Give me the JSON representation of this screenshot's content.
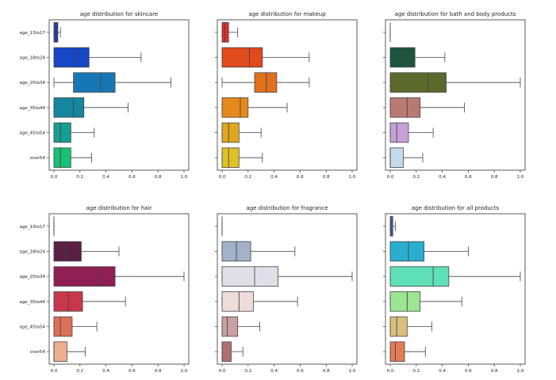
{
  "chart_data": {
    "type": "box",
    "categories": [
      "age_13to17",
      "age_18to24",
      "age_25to34",
      "age_35to44",
      "age_45to54",
      "over54"
    ],
    "xlim": [
      0,
      1.0
    ],
    "xticks": [
      "0.0",
      "0.2",
      "0.4",
      "0.6",
      "0.8",
      "1.0"
    ],
    "panels": [
      {
        "title": "age distribution for skincare",
        "colors": [
          "#2539b5",
          "#1547c6",
          "#1777b5",
          "#1486a0",
          "#169f93",
          "#17c275"
        ],
        "boxes": [
          {
            "min": 0.0,
            "q1": 0.0,
            "median": 0.01,
            "q3": 0.03,
            "max": 0.05
          },
          {
            "min": 0.0,
            "q1": 0.0,
            "median": 0.16,
            "q3": 0.27,
            "max": 0.67
          },
          {
            "min": 0.0,
            "q1": 0.15,
            "median": 0.36,
            "q3": 0.47,
            "max": 0.9
          },
          {
            "min": 0.0,
            "q1": 0.0,
            "median": 0.15,
            "q3": 0.23,
            "max": 0.57
          },
          {
            "min": 0.0,
            "q1": 0.0,
            "median": 0.05,
            "q3": 0.13,
            "max": 0.31
          },
          {
            "min": 0.0,
            "q1": 0.0,
            "median": 0.05,
            "q3": 0.13,
            "max": 0.29
          }
        ]
      },
      {
        "title": "age distribution for makeup",
        "colors": [
          "#e22e2a",
          "#e04a1d",
          "#e2701c",
          "#e48a1c",
          "#e0a61e",
          "#e0c125"
        ],
        "boxes": [
          {
            "min": 0.0,
            "q1": 0.0,
            "median": 0.02,
            "q3": 0.05,
            "max": 0.12
          },
          {
            "min": 0.0,
            "q1": 0.0,
            "median": 0.21,
            "q3": 0.31,
            "max": 0.67
          },
          {
            "min": 0.0,
            "q1": 0.25,
            "median": 0.34,
            "q3": 0.42,
            "max": 0.67
          },
          {
            "min": 0.0,
            "q1": 0.0,
            "median": 0.14,
            "q3": 0.2,
            "max": 0.5
          },
          {
            "min": 0.0,
            "q1": 0.0,
            "median": 0.05,
            "q3": 0.13,
            "max": 0.3
          },
          {
            "min": 0.0,
            "q1": 0.0,
            "median": 0.05,
            "q3": 0.13,
            "max": 0.31
          }
        ]
      },
      {
        "title": "age distribution for bath and body products",
        "colors": [
          "#2a6b48",
          "#1d553f",
          "#5b6a2c",
          "#b87a72",
          "#c7a0d8",
          "#c4dbeb"
        ],
        "boxes": [
          {
            "min": 0.0,
            "q1": 0.0,
            "median": 0.0,
            "q3": 0.0,
            "max": 0.0
          },
          {
            "min": 0.0,
            "q1": 0.0,
            "median": 0.12,
            "q3": 0.19,
            "max": 0.42
          },
          {
            "min": 0.0,
            "q1": 0.0,
            "median": 0.29,
            "q3": 0.43,
            "max": 1.0
          },
          {
            "min": 0.0,
            "q1": 0.0,
            "median": 0.13,
            "q3": 0.23,
            "max": 0.57
          },
          {
            "min": 0.0,
            "q1": 0.0,
            "median": 0.05,
            "q3": 0.14,
            "max": 0.33
          },
          {
            "min": 0.0,
            "q1": 0.0,
            "median": 0.0,
            "q3": 0.1,
            "max": 0.25
          }
        ]
      },
      {
        "title": "age distribution for hair",
        "colors": [
          "#3a1a3d",
          "#5a1f45",
          "#8f1f55",
          "#c9374a",
          "#dd7157",
          "#eeaf8e"
        ],
        "boxes": [
          {
            "min": 0.0,
            "q1": 0.0,
            "median": 0.0,
            "q3": 0.0,
            "max": 0.0
          },
          {
            "min": 0.0,
            "q1": 0.0,
            "median": 0.09,
            "q3": 0.21,
            "max": 0.5
          },
          {
            "min": 0.0,
            "q1": 0.0,
            "median": 0.34,
            "q3": 0.47,
            "max": 1.0
          },
          {
            "min": 0.0,
            "q1": 0.0,
            "median": 0.11,
            "q3": 0.22,
            "max": 0.55
          },
          {
            "min": 0.0,
            "q1": 0.0,
            "median": 0.05,
            "q3": 0.14,
            "max": 0.33
          },
          {
            "min": 0.0,
            "q1": 0.0,
            "median": 0.0,
            "q3": 0.1,
            "max": 0.24
          }
        ]
      },
      {
        "title": "age distribution for fragrance",
        "colors": [
          "#b8c8dc",
          "#a3b2c8",
          "#e0dfe7",
          "#efdcda",
          "#cca0a2",
          "#b0706f"
        ],
        "boxes": [
          {
            "min": 0.0,
            "q1": 0.0,
            "median": 0.0,
            "q3": 0.0,
            "max": 0.0
          },
          {
            "min": 0.0,
            "q1": 0.0,
            "median": 0.11,
            "q3": 0.22,
            "max": 0.56
          },
          {
            "min": 0.0,
            "q1": 0.0,
            "median": 0.25,
            "q3": 0.43,
            "max": 1.0
          },
          {
            "min": 0.0,
            "q1": 0.0,
            "median": 0.13,
            "q3": 0.24,
            "max": 0.58
          },
          {
            "min": 0.0,
            "q1": 0.0,
            "median": 0.04,
            "q3": 0.12,
            "max": 0.29
          },
          {
            "min": 0.0,
            "q1": 0.0,
            "median": 0.0,
            "q3": 0.07,
            "max": 0.16
          }
        ]
      },
      {
        "title": "age distribution for all products",
        "colors": [
          "#4d6bc0",
          "#2aaecf",
          "#5fe0b7",
          "#9ce592",
          "#d9c07c",
          "#e57b55"
        ],
        "boxes": [
          {
            "min": 0.0,
            "q1": 0.0,
            "median": 0.01,
            "q3": 0.02,
            "max": 0.04
          },
          {
            "min": 0.0,
            "q1": 0.0,
            "median": 0.14,
            "q3": 0.26,
            "max": 0.6
          },
          {
            "min": 0.0,
            "q1": 0.0,
            "median": 0.33,
            "q3": 0.45,
            "max": 1.0
          },
          {
            "min": 0.0,
            "q1": 0.0,
            "median": 0.13,
            "q3": 0.23,
            "max": 0.55
          },
          {
            "min": 0.0,
            "q1": 0.0,
            "median": 0.05,
            "q3": 0.13,
            "max": 0.32
          },
          {
            "min": 0.0,
            "q1": 0.0,
            "median": 0.04,
            "q3": 0.11,
            "max": 0.27
          }
        ]
      }
    ]
  }
}
